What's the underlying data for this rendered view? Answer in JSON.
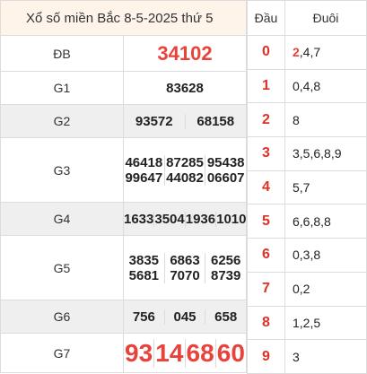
{
  "title": "Xổ số miền Bắc 8-5-2025 thứ 5",
  "rows": [
    {
      "label": "ĐB",
      "numbers": [
        "34102"
      ]
    },
    {
      "label": "G1",
      "numbers": [
        "83628"
      ]
    },
    {
      "label": "G2",
      "numbers": [
        "93572",
        "68158"
      ]
    },
    {
      "label": "G3",
      "numbers": [
        "46418",
        "87285",
        "95438",
        "99647",
        "44082",
        "06607"
      ]
    },
    {
      "label": "G4",
      "numbers": [
        "1633",
        "3504",
        "1936",
        "1010"
      ]
    },
    {
      "label": "G5",
      "numbers": [
        "3835",
        "6863",
        "6256",
        "5681",
        "7070",
        "8739"
      ]
    },
    {
      "label": "G6",
      "numbers": [
        "756",
        "045",
        "658"
      ]
    },
    {
      "label": "G7",
      "numbers": [
        "93",
        "14",
        "68",
        "60"
      ]
    }
  ],
  "loto": {
    "head_label": "Đầu",
    "tail_label": "Đuôi",
    "rows": [
      {
        "head": "0",
        "highlight": "2",
        "tail": ",4,7"
      },
      {
        "head": "1",
        "highlight": "",
        "tail": "0,4,8"
      },
      {
        "head": "2",
        "highlight": "",
        "tail": "8"
      },
      {
        "head": "3",
        "highlight": "",
        "tail": "3,5,6,8,9"
      },
      {
        "head": "4",
        "highlight": "",
        "tail": "5,7"
      },
      {
        "head": "5",
        "highlight": "",
        "tail": "6,6,8,8"
      },
      {
        "head": "6",
        "highlight": "",
        "tail": "0,3,8"
      },
      {
        "head": "7",
        "highlight": "",
        "tail": "0,2"
      },
      {
        "head": "8",
        "highlight": "",
        "tail": "1,2,5"
      },
      {
        "head": "9",
        "highlight": "",
        "tail": "3"
      }
    ]
  }
}
